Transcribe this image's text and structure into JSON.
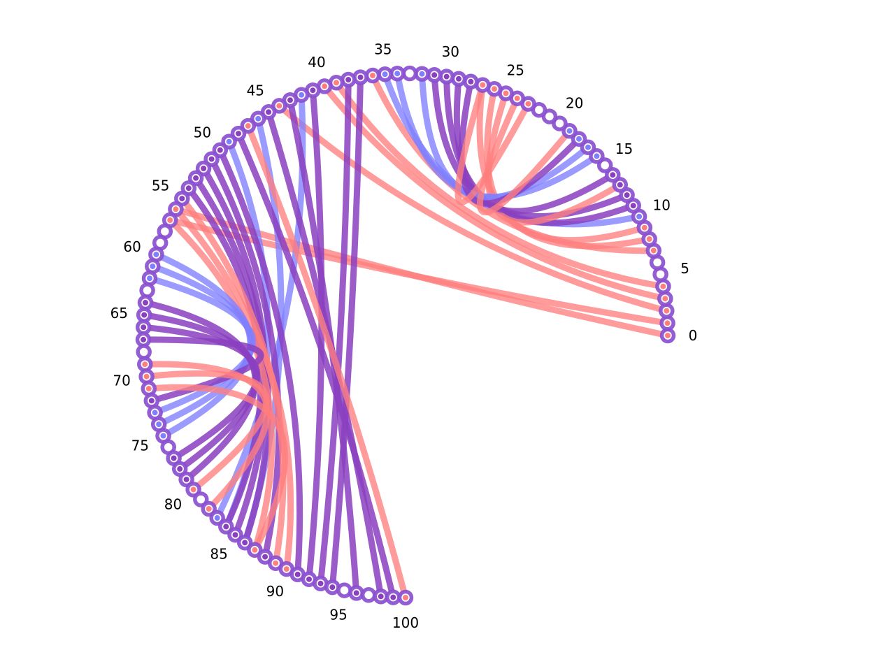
{
  "diagram": {
    "type": "circular-arc-diagram",
    "node_count": 101,
    "node_range": [
      0,
      100
    ],
    "tick_labels": [
      "0",
      "5",
      "10",
      "15",
      "20",
      "25",
      "30",
      "35",
      "40",
      "45",
      "50",
      "55",
      "60",
      "65",
      "70",
      "75",
      "80",
      "85",
      "90",
      "95",
      "100"
    ],
    "colors": {
      "red": "#ff7f7f",
      "blue": "#7f7fff",
      "purple": "#8a3fbf",
      "node_ring": "#8a4fcf",
      "node_fill": "#ffffff"
    },
    "node_inner": {
      "0": "red",
      "1": "red",
      "2": "red",
      "3": "red",
      "4": "red",
      "5": "white",
      "6": "white",
      "7": "red",
      "8": "red",
      "9": "red",
      "10": "blue",
      "11": "purple",
      "12": "purple",
      "13": "purple",
      "14": "purple",
      "15": "white",
      "16": "blue",
      "17": "blue",
      "18": "blue",
      "19": "blue",
      "20": "white",
      "21": "white",
      "22": "white",
      "23": "red",
      "24": "red",
      "25": "red",
      "26": "red",
      "27": "red",
      "28": "purple",
      "29": "purple",
      "30": "purple",
      "31": "purple",
      "32": "blue",
      "33": "white",
      "34": "blue",
      "35": "blue",
      "36": "red",
      "37": "purple",
      "38": "purple",
      "39": "red",
      "40": "red",
      "41": "purple",
      "42": "blue",
      "43": "purple",
      "44": "red",
      "45": "purple",
      "46": "blue",
      "47": "red",
      "48": "purple",
      "49": "blue",
      "50": "purple",
      "51": "purple",
      "52": "purple",
      "53": "purple",
      "54": "purple",
      "55": "purple",
      "56": "red",
      "57": "red",
      "58": "white",
      "59": "white",
      "60": "blue",
      "61": "blue",
      "62": "blue",
      "63": "white",
      "64": "purple",
      "65": "purple",
      "66": "purple",
      "67": "purple",
      "68": "white",
      "69": "red",
      "70": "red",
      "71": "red",
      "72": "purple",
      "73": "blue",
      "74": "blue",
      "75": "blue",
      "76": "white",
      "77": "purple",
      "78": "purple",
      "79": "purple",
      "80": "red",
      "81": "white",
      "82": "red",
      "83": "blue",
      "84": "purple",
      "85": "purple",
      "86": "purple",
      "87": "red",
      "88": "purple",
      "89": "red",
      "90": "red",
      "91": "purple",
      "92": "purple",
      "93": "purple",
      "94": "purple",
      "95": "white",
      "96": "purple",
      "97": "white",
      "98": "purple",
      "99": "purple",
      "100": "red"
    },
    "links": [
      {
        "source": 0,
        "target": 56,
        "color": "red"
      },
      {
        "source": 1,
        "target": 57,
        "color": "red"
      },
      {
        "source": 2,
        "target": 44,
        "color": "red"
      },
      {
        "source": 3,
        "target": 40,
        "color": "red"
      },
      {
        "source": 4,
        "target": 39,
        "color": "red"
      },
      {
        "source": 7,
        "target": 36,
        "color": "red"
      },
      {
        "source": 8,
        "target": 27,
        "color": "red"
      },
      {
        "source": 9,
        "target": 26,
        "color": "red"
      },
      {
        "source": 10,
        "target": 35,
        "color": "blue"
      },
      {
        "source": 11,
        "target": 30,
        "color": "purple"
      },
      {
        "source": 12,
        "target": 31,
        "color": "purple"
      },
      {
        "source": 13,
        "target": 25,
        "color": "red"
      },
      {
        "source": 14,
        "target": 29,
        "color": "purple"
      },
      {
        "source": 16,
        "target": 34,
        "color": "blue"
      },
      {
        "source": 17,
        "target": 32,
        "color": "blue"
      },
      {
        "source": 18,
        "target": 28,
        "color": "purple"
      },
      {
        "source": 19,
        "target": 24,
        "color": "red"
      },
      {
        "source": 23,
        "target": 27,
        "color": "red"
      },
      {
        "source": 37,
        "target": 94,
        "color": "purple"
      },
      {
        "source": 38,
        "target": 93,
        "color": "purple"
      },
      {
        "source": 41,
        "target": 92,
        "color": "purple"
      },
      {
        "source": 42,
        "target": 83,
        "color": "blue"
      },
      {
        "source": 43,
        "target": 96,
        "color": "purple"
      },
      {
        "source": 45,
        "target": 98,
        "color": "purple"
      },
      {
        "source": 46,
        "target": 86,
        "color": "blue"
      },
      {
        "source": 47,
        "target": 100,
        "color": "red"
      },
      {
        "source": 48,
        "target": 99,
        "color": "purple"
      },
      {
        "source": 49,
        "target": 84,
        "color": "blue"
      },
      {
        "source": 50,
        "target": 91,
        "color": "purple"
      },
      {
        "source": 51,
        "target": 88,
        "color": "purple"
      },
      {
        "source": 52,
        "target": 85,
        "color": "purple"
      },
      {
        "source": 53,
        "target": 86,
        "color": "purple"
      },
      {
        "source": 54,
        "target": 84,
        "color": "purple"
      },
      {
        "source": 55,
        "target": 89,
        "color": "red"
      },
      {
        "source": 56,
        "target": 90,
        "color": "red"
      },
      {
        "source": 57,
        "target": 87,
        "color": "red"
      },
      {
        "source": 60,
        "target": 75,
        "color": "blue"
      },
      {
        "source": 61,
        "target": 74,
        "color": "blue"
      },
      {
        "source": 62,
        "target": 73,
        "color": "blue"
      },
      {
        "source": 64,
        "target": 79,
        "color": "purple"
      },
      {
        "source": 65,
        "target": 78,
        "color": "purple"
      },
      {
        "source": 66,
        "target": 77,
        "color": "purple"
      },
      {
        "source": 67,
        "target": 72,
        "color": "purple"
      },
      {
        "source": 69,
        "target": 82,
        "color": "red"
      },
      {
        "source": 70,
        "target": 80,
        "color": "red"
      },
      {
        "source": 71,
        "target": 87,
        "color": "red"
      }
    ]
  }
}
